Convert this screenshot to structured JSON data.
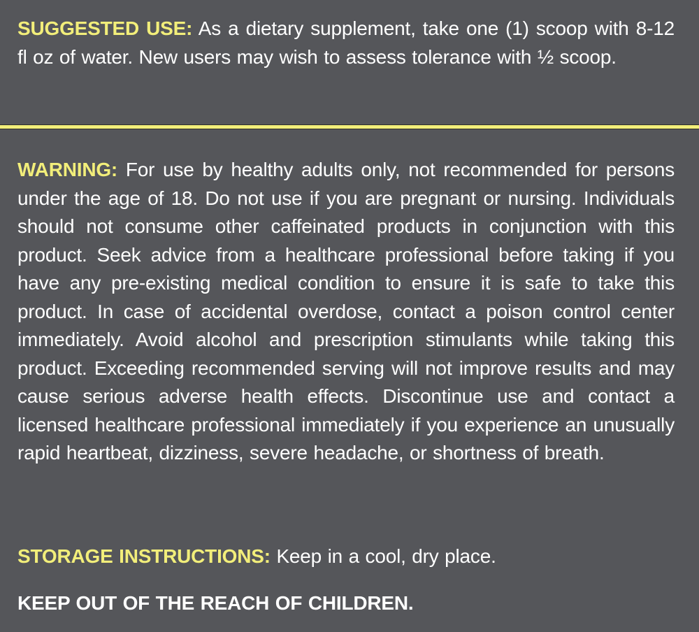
{
  "suggested_use": {
    "label": "SUGGESTED USE:",
    "text": " As a dietary supplement, take one (1) scoop with 8-12 fl oz of water. New users may wish to assess tolerance with ½ scoop."
  },
  "warning": {
    "label": "WARNING:",
    "text": " For use by healthy adults only, not recommended for persons under the age of 18.  Do not use if you are pregnant or nursing. Individuals should not consume other caffeinated products in conjunction with this product.  Seek advice from a healthcare professional before taking if you have any pre-existing medical condition to ensure it is safe to take this product.  In case of accidental overdose, contact a poison control center immediately. Avoid alcohol and prescription stimulants while taking this product. Exceeding recommended serving will not improve results and may cause serious adverse health effects. Discontinue use and contact a licensed healthcare professional immediately if you experience an unusually rapid heartbeat, dizziness, severe headache, or shortness of breath."
  },
  "storage": {
    "label": "STORAGE INSTRUCTIONS:",
    "text": " Keep in a cool, dry place."
  },
  "keep_out": "KEEP OUT OF THE REACH OF CHILDREN.",
  "colors": {
    "background": "#55565a",
    "accent": "#f2ee7a",
    "text": "#ffffff"
  }
}
